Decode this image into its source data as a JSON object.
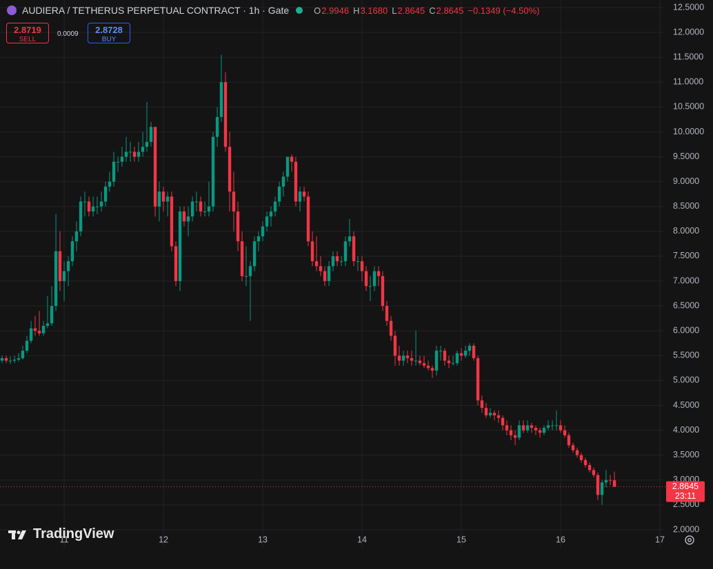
{
  "ui": {
    "sell_price": "2.8719",
    "sell_label": "SELL",
    "spread": "0.0009",
    "buy_price": "2.8728",
    "buy_label": "BUY",
    "legend": {
      "open_key": "O",
      "open": "2.9946",
      "high_key": "H",
      "high": "3.1680",
      "low_key": "L",
      "low": "2.8645",
      "close_key": "C",
      "close": "2.8645",
      "change": "−0.1349 (−4.50%)"
    },
    "countdown": "23:11",
    "watermark": "TradingView"
  },
  "chart_data": {
    "type": "candlestick",
    "title": "AUDIERA / TETHERUS PERPETUAL CONTRACT · 1h · Gate",
    "up_color": "#089981",
    "down_color": "#f23645",
    "grid": true,
    "last_price_label": "2.8645",
    "ylim": [
      2.0,
      12.5
    ],
    "yticks": [
      {
        "value": 12.5,
        "label": "12.5000"
      },
      {
        "value": 12,
        "label": "12.0000"
      },
      {
        "value": 11.5,
        "label": "11.5000"
      },
      {
        "value": 11,
        "label": "11.0000"
      },
      {
        "value": 10.5,
        "label": "10.5000"
      },
      {
        "value": 10,
        "label": "10.0000"
      },
      {
        "value": 9.5,
        "label": "9.5000"
      },
      {
        "value": 9,
        "label": "9.0000"
      },
      {
        "value": 8.5,
        "label": "8.5000"
      },
      {
        "value": 8,
        "label": "8.0000"
      },
      {
        "value": 7.5,
        "label": "7.5000"
      },
      {
        "value": 7,
        "label": "7.0000"
      },
      {
        "value": 6.5,
        "label": "6.5000"
      },
      {
        "value": 6,
        "label": "6.0000"
      },
      {
        "value": 5.5,
        "label": "5.5000"
      },
      {
        "value": 5,
        "label": "5.0000"
      },
      {
        "value": 4.5,
        "label": "4.5000"
      },
      {
        "value": 4,
        "label": "4.0000"
      },
      {
        "value": 3.5,
        "label": "3.5000"
      },
      {
        "value": 3,
        "label": "3.0000"
      },
      {
        "value": 2.5,
        "label": "2.5000"
      },
      {
        "value": 2,
        "label": "2.0000"
      }
    ],
    "xlim": [
      10.354,
      17.0
    ],
    "xticks": [
      11,
      12,
      13,
      14,
      15,
      16,
      17
    ],
    "x": [
      10.375,
      10.417,
      10.458,
      10.5,
      10.542,
      10.583,
      10.625,
      10.667,
      10.708,
      10.75,
      10.792,
      10.833,
      10.875,
      10.917,
      10.958,
      11,
      11.042,
      11.083,
      11.125,
      11.167,
      11.208,
      11.25,
      11.292,
      11.333,
      11.375,
      11.417,
      11.458,
      11.5,
      11.542,
      11.583,
      11.625,
      11.667,
      11.708,
      11.75,
      11.792,
      11.833,
      11.875,
      11.917,
      11.958,
      12,
      12.042,
      12.083,
      12.125,
      12.167,
      12.208,
      12.25,
      12.292,
      12.333,
      12.375,
      12.417,
      12.458,
      12.5,
      12.542,
      12.583,
      12.625,
      12.667,
      12.708,
      12.75,
      12.792,
      12.833,
      12.875,
      12.917,
      12.958,
      13,
      13.042,
      13.083,
      13.125,
      13.167,
      13.208,
      13.25,
      13.292,
      13.333,
      13.375,
      13.417,
      13.458,
      13.5,
      13.542,
      13.583,
      13.625,
      13.667,
      13.708,
      13.75,
      13.792,
      13.833,
      13.875,
      13.917,
      13.958,
      14,
      14.042,
      14.083,
      14.125,
      14.167,
      14.208,
      14.25,
      14.292,
      14.333,
      14.375,
      14.417,
      14.458,
      14.5,
      14.542,
      14.583,
      14.625,
      14.667,
      14.708,
      14.75,
      14.792,
      14.833,
      14.875,
      14.917,
      14.958,
      15,
      15.042,
      15.083,
      15.125,
      15.167,
      15.208,
      15.25,
      15.292,
      15.333,
      15.375,
      15.417,
      15.458,
      15.5,
      15.542,
      15.583,
      15.625,
      15.667,
      15.708,
      15.75,
      15.792,
      15.833,
      15.875,
      15.917,
      15.958,
      16,
      16.042,
      16.083,
      16.125,
      16.167,
      16.208,
      16.25,
      16.292,
      16.333,
      16.375,
      16.417,
      16.458,
      16.5,
      16.542
    ],
    "ohlc": [
      [
        5.4,
        5.5,
        5.35,
        5.45
      ],
      [
        5.45,
        5.5,
        5.35,
        5.4
      ],
      [
        5.4,
        5.48,
        5.33,
        5.4
      ],
      [
        5.4,
        5.5,
        5.35,
        5.42
      ],
      [
        5.42,
        5.55,
        5.38,
        5.45
      ],
      [
        5.45,
        5.7,
        5.42,
        5.6
      ],
      [
        5.6,
        5.9,
        5.55,
        5.8
      ],
      [
        5.8,
        6.2,
        5.75,
        6.05
      ],
      [
        6.05,
        6.3,
        5.9,
        6.0
      ],
      [
        6.0,
        6.4,
        5.9,
        5.95
      ],
      [
        5.95,
        6.2,
        5.9,
        6.1
      ],
      [
        6.1,
        6.7,
        6.05,
        6.15
      ],
      [
        6.15,
        6.9,
        6.1,
        6.5
      ],
      [
        6.5,
        8.35,
        6.4,
        7.6
      ],
      [
        7.6,
        8.0,
        6.8,
        7.0
      ],
      [
        7.0,
        7.4,
        6.6,
        7.2
      ],
      [
        7.2,
        7.5,
        6.9,
        7.4
      ],
      [
        7.4,
        7.9,
        7.3,
        7.8
      ],
      [
        7.8,
        8.2,
        7.6,
        8.0
      ],
      [
        8.0,
        8.7,
        7.9,
        8.6
      ],
      [
        8.6,
        8.8,
        8.3,
        8.6
      ],
      [
        8.6,
        8.7,
        8.3,
        8.4
      ],
      [
        8.4,
        8.7,
        8.3,
        8.5
      ],
      [
        8.5,
        8.7,
        8.35,
        8.5
      ],
      [
        8.5,
        8.8,
        8.4,
        8.6
      ],
      [
        8.6,
        9.0,
        8.5,
        8.9
      ],
      [
        8.9,
        9.2,
        8.8,
        9.0
      ],
      [
        9.0,
        9.6,
        8.9,
        9.4
      ],
      [
        9.4,
        9.5,
        9.2,
        9.4
      ],
      [
        9.4,
        9.7,
        9.3,
        9.5
      ],
      [
        9.5,
        9.9,
        9.4,
        9.6
      ],
      [
        9.6,
        9.8,
        9.4,
        9.6
      ],
      [
        9.6,
        9.7,
        9.4,
        9.5
      ],
      [
        9.5,
        9.8,
        9.4,
        9.6
      ],
      [
        9.6,
        10.0,
        9.5,
        9.7
      ],
      [
        9.7,
        10.6,
        9.6,
        9.8
      ],
      [
        9.8,
        10.2,
        9.7,
        10.1
      ],
      [
        10.1,
        10.1,
        8.3,
        8.5
      ],
      [
        8.5,
        9.0,
        8.2,
        8.8
      ],
      [
        8.8,
        8.9,
        8.4,
        8.6
      ],
      [
        8.6,
        8.8,
        8.3,
        8.7
      ],
      [
        8.7,
        8.8,
        7.6,
        7.7
      ],
      [
        7.7,
        7.8,
        6.9,
        7.0
      ],
      [
        7.0,
        8.5,
        6.8,
        8.4
      ],
      [
        8.4,
        8.5,
        8.1,
        8.2
      ],
      [
        8.2,
        8.5,
        7.9,
        8.3
      ],
      [
        8.3,
        8.7,
        8.2,
        8.6
      ],
      [
        8.6,
        8.8,
        8.4,
        8.6
      ],
      [
        8.6,
        8.7,
        8.3,
        8.4
      ],
      [
        8.4,
        8.6,
        8.3,
        8.4
      ],
      [
        8.4,
        9.0,
        8.3,
        8.5
      ],
      [
        8.5,
        10.0,
        8.4,
        9.9
      ],
      [
        9.9,
        10.5,
        9.7,
        10.3
      ],
      [
        10.3,
        11.55,
        10.2,
        11.0
      ],
      [
        11.0,
        11.2,
        9.6,
        9.7
      ],
      [
        9.7,
        10.0,
        8.4,
        8.8
      ],
      [
        8.8,
        9.2,
        8.0,
        8.4
      ],
      [
        8.4,
        8.6,
        7.6,
        7.8
      ],
      [
        7.8,
        8.0,
        7.0,
        7.1
      ],
      [
        7.1,
        7.7,
        6.9,
        7.1
      ],
      [
        7.1,
        7.4,
        6.2,
        7.3
      ],
      [
        7.3,
        7.9,
        7.2,
        7.8
      ],
      [
        7.8,
        8.0,
        7.6,
        7.9
      ],
      [
        7.9,
        8.2,
        7.8,
        8.1
      ],
      [
        8.1,
        8.4,
        8.0,
        8.3
      ],
      [
        8.3,
        8.5,
        8.1,
        8.4
      ],
      [
        8.4,
        8.7,
        8.3,
        8.6
      ],
      [
        8.6,
        9.0,
        8.5,
        8.9
      ],
      [
        8.9,
        9.2,
        8.7,
        9.1
      ],
      [
        9.1,
        9.5,
        9.0,
        9.5
      ],
      [
        9.5,
        9.55,
        9.2,
        9.4
      ],
      [
        9.4,
        9.5,
        8.5,
        8.6
      ],
      [
        8.6,
        8.9,
        8.4,
        8.8
      ],
      [
        8.8,
        8.9,
        8.6,
        8.7
      ],
      [
        8.7,
        8.8,
        7.7,
        7.8
      ],
      [
        7.8,
        8.0,
        7.3,
        7.4
      ],
      [
        7.4,
        7.9,
        7.2,
        7.3
      ],
      [
        7.3,
        7.5,
        7.1,
        7.2
      ],
      [
        7.2,
        7.3,
        6.9,
        7.0
      ],
      [
        7.0,
        7.4,
        6.9,
        7.3
      ],
      [
        7.3,
        7.6,
        7.2,
        7.5
      ],
      [
        7.5,
        7.6,
        7.3,
        7.4
      ],
      [
        7.4,
        7.5,
        7.3,
        7.4
      ],
      [
        7.4,
        7.9,
        7.3,
        7.8
      ],
      [
        7.8,
        8.25,
        7.7,
        7.9
      ],
      [
        7.9,
        8.0,
        7.3,
        7.4
      ],
      [
        7.4,
        7.5,
        7.2,
        7.4
      ],
      [
        7.4,
        7.5,
        7.0,
        7.2
      ],
      [
        7.2,
        7.3,
        6.8,
        6.9
      ],
      [
        6.9,
        7.1,
        6.6,
        6.9
      ],
      [
        6.9,
        7.3,
        6.8,
        7.2
      ],
      [
        7.2,
        7.3,
        6.9,
        7.1
      ],
      [
        7.1,
        7.2,
        6.4,
        6.5
      ],
      [
        6.5,
        6.6,
        6.1,
        6.2
      ],
      [
        6.2,
        6.3,
        5.8,
        5.9
      ],
      [
        5.9,
        6.0,
        5.3,
        5.5
      ],
      [
        5.5,
        5.7,
        5.3,
        5.4
      ],
      [
        5.4,
        5.6,
        5.3,
        5.5
      ],
      [
        5.5,
        5.6,
        5.35,
        5.45
      ],
      [
        5.45,
        5.6,
        5.3,
        5.4
      ],
      [
        5.4,
        6.0,
        5.3,
        5.4
      ],
      [
        5.4,
        5.5,
        5.3,
        5.35
      ],
      [
        5.35,
        5.5,
        5.25,
        5.3
      ],
      [
        5.3,
        5.4,
        5.2,
        5.25
      ],
      [
        5.25,
        5.3,
        5.05,
        5.2
      ],
      [
        5.2,
        5.7,
        5.1,
        5.6
      ],
      [
        5.6,
        5.7,
        5.4,
        5.6
      ],
      [
        5.6,
        5.65,
        5.3,
        5.4
      ],
      [
        5.4,
        5.5,
        5.25,
        5.35
      ],
      [
        5.35,
        5.5,
        5.3,
        5.35
      ],
      [
        5.35,
        5.6,
        5.3,
        5.55
      ],
      [
        5.55,
        5.65,
        5.4,
        5.5
      ],
      [
        5.5,
        5.7,
        5.45,
        5.6
      ],
      [
        5.6,
        5.75,
        5.5,
        5.7
      ],
      [
        5.7,
        5.75,
        5.4,
        5.45
      ],
      [
        5.45,
        5.5,
        4.5,
        4.6
      ],
      [
        4.6,
        4.7,
        4.35,
        4.45
      ],
      [
        4.45,
        4.55,
        4.25,
        4.3
      ],
      [
        4.3,
        4.45,
        4.25,
        4.35
      ],
      [
        4.35,
        4.4,
        4.2,
        4.3
      ],
      [
        4.3,
        4.4,
        4.15,
        4.25
      ],
      [
        4.25,
        4.3,
        4.0,
        4.1
      ],
      [
        4.1,
        4.2,
        3.9,
        4.0
      ],
      [
        4.0,
        4.1,
        3.8,
        3.9
      ],
      [
        3.9,
        4.0,
        3.7,
        3.85
      ],
      [
        3.85,
        4.2,
        3.8,
        4.1
      ],
      [
        4.1,
        4.2,
        3.95,
        4.0
      ],
      [
        4.0,
        4.2,
        3.95,
        4.1
      ],
      [
        4.1,
        4.15,
        3.95,
        4.05
      ],
      [
        4.05,
        4.1,
        3.9,
        4.0
      ],
      [
        4.0,
        4.05,
        3.85,
        3.95
      ],
      [
        3.95,
        4.1,
        3.9,
        4.05
      ],
      [
        4.05,
        4.2,
        4.0,
        4.1
      ],
      [
        4.1,
        4.2,
        4.0,
        4.1
      ],
      [
        4.1,
        4.4,
        4.0,
        4.1
      ],
      [
        4.1,
        4.2,
        3.95,
        4.0
      ],
      [
        4.0,
        4.1,
        3.85,
        3.9
      ],
      [
        3.9,
        3.95,
        3.65,
        3.7
      ],
      [
        3.7,
        3.75,
        3.55,
        3.6
      ],
      [
        3.6,
        3.65,
        3.45,
        3.5
      ],
      [
        3.5,
        3.55,
        3.35,
        3.4
      ],
      [
        3.4,
        3.45,
        3.25,
        3.3
      ],
      [
        3.3,
        3.35,
        3.15,
        3.2
      ],
      [
        3.2,
        3.25,
        3.05,
        3.1
      ],
      [
        3.1,
        3.15,
        2.6,
        2.7
      ],
      [
        2.7,
        3.0,
        2.5,
        2.95
      ],
      [
        2.95,
        3.2,
        2.85,
        3.0
      ],
      [
        3.0,
        3.1,
        2.9,
        2.99
      ],
      [
        2.9946,
        3.168,
        2.8645,
        2.8645
      ]
    ]
  }
}
